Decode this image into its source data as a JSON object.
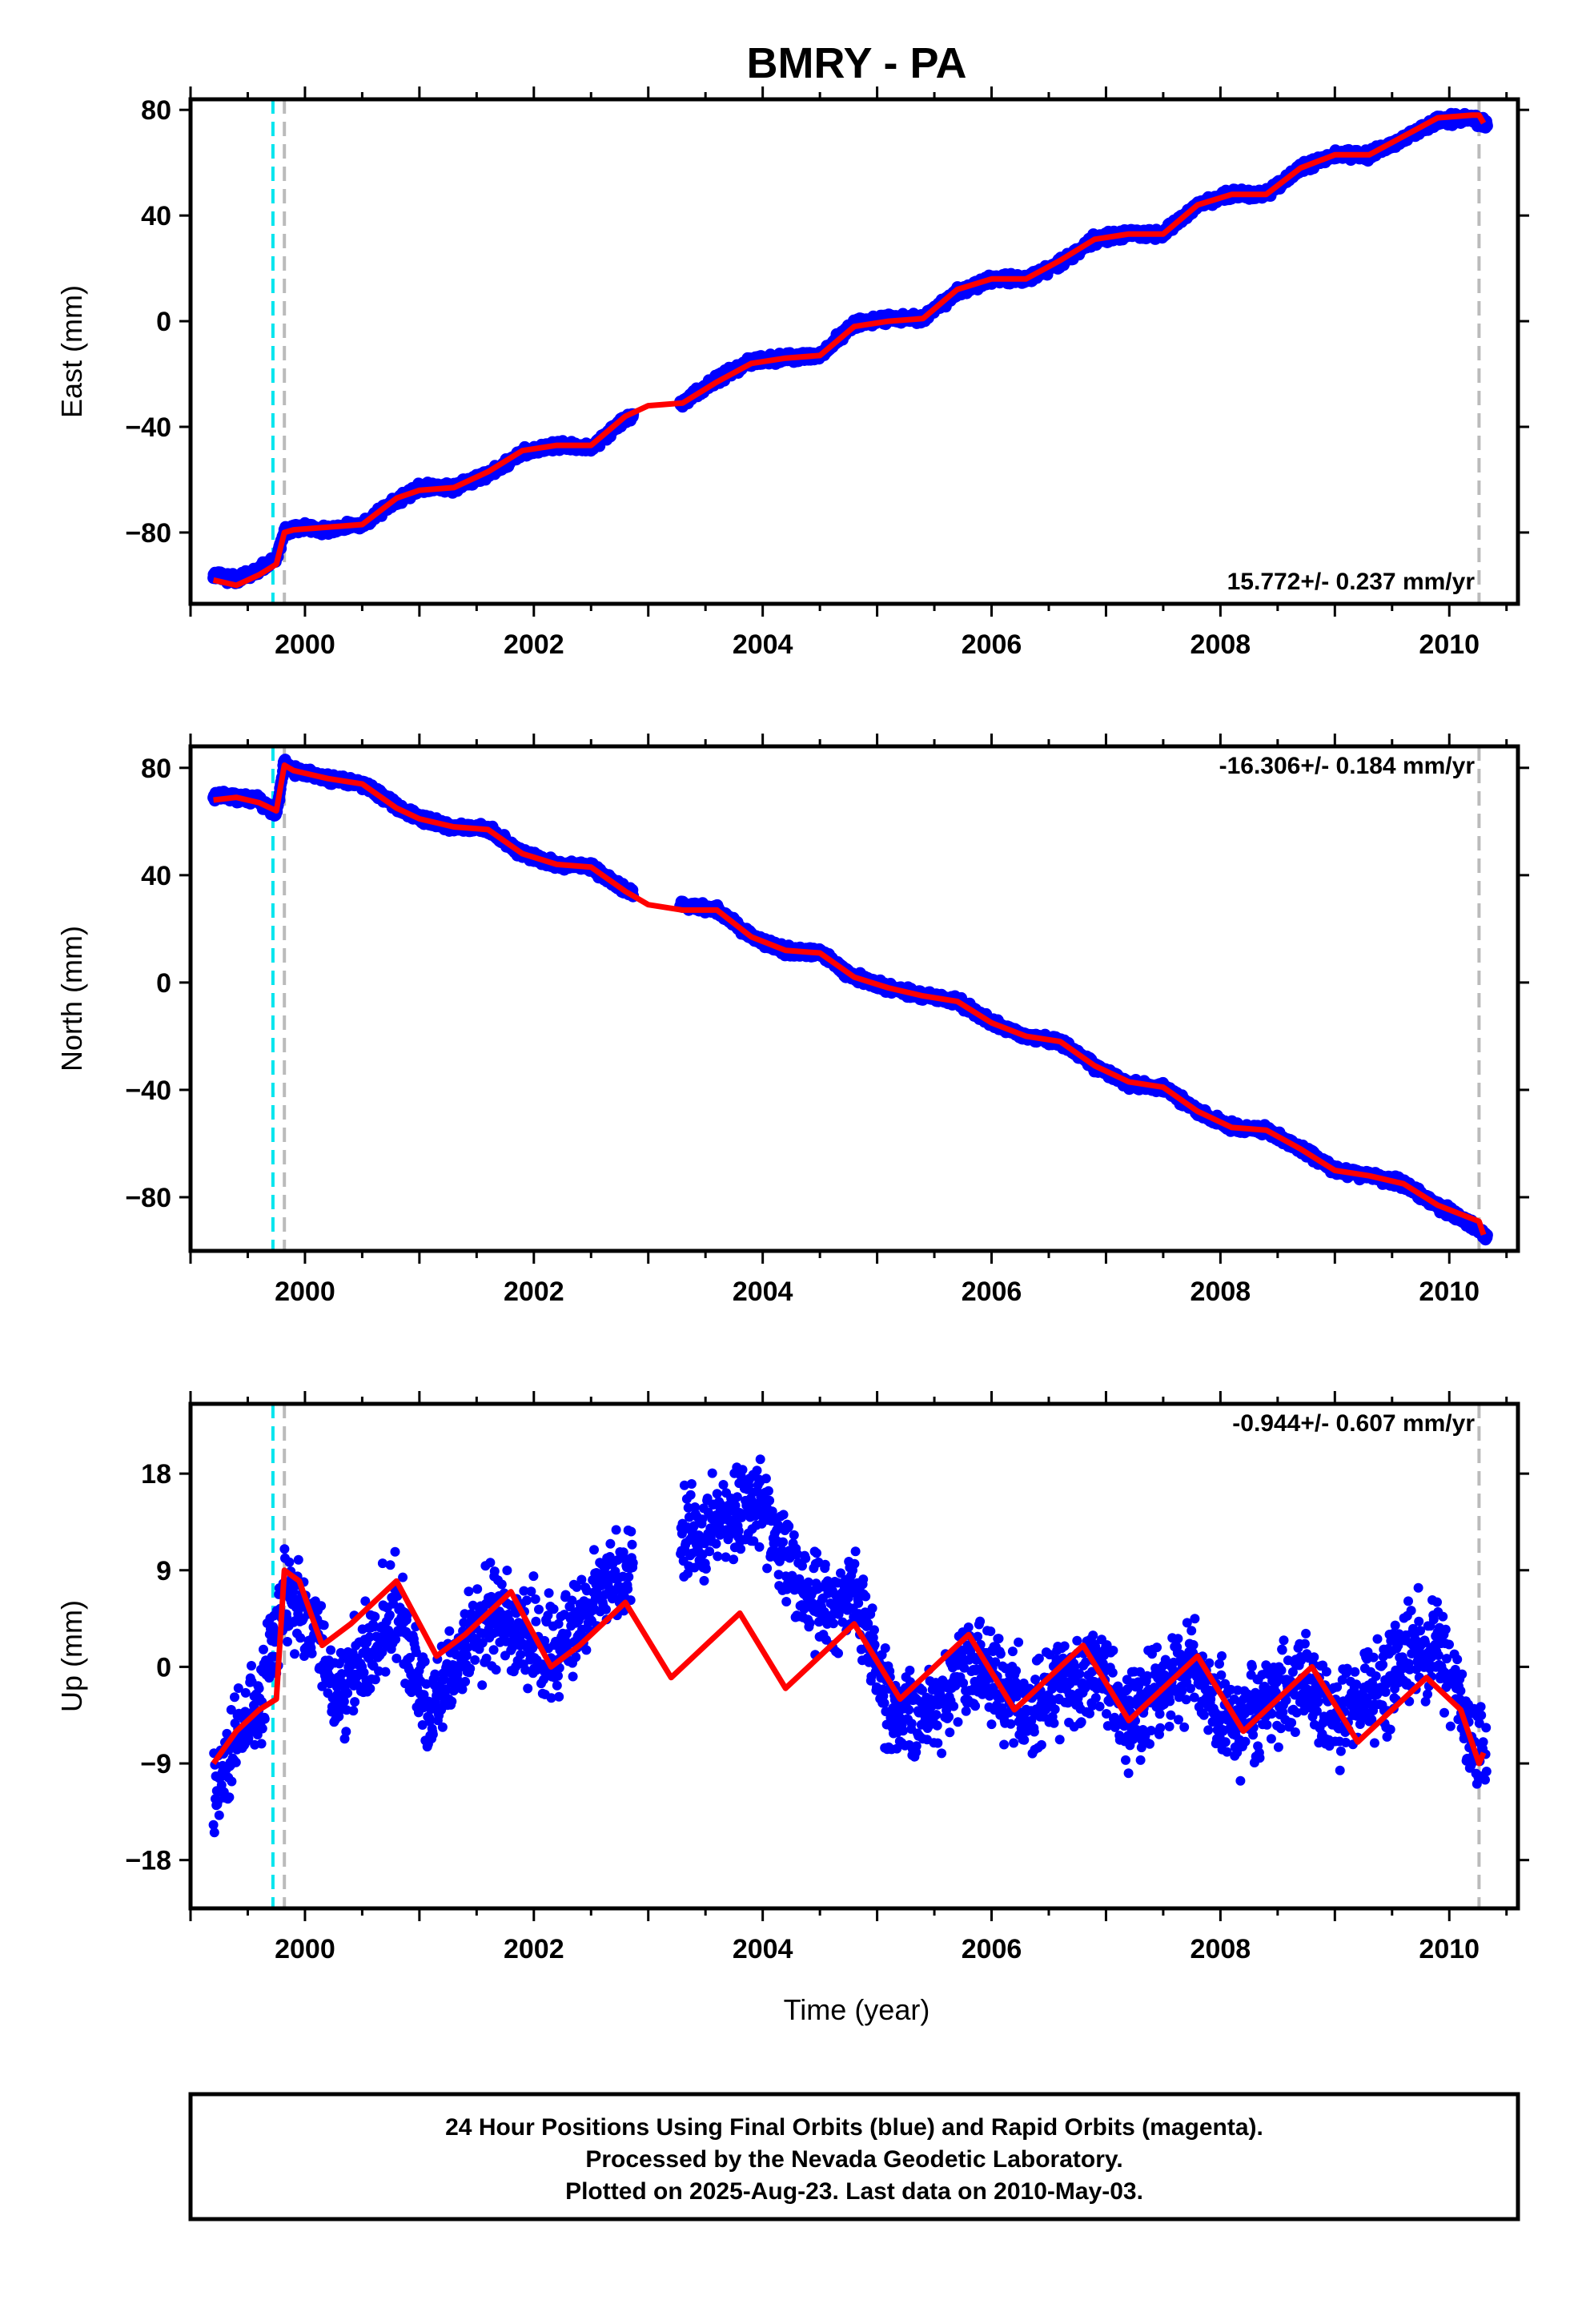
{
  "chart_data": [
    {
      "type": "scatter",
      "title": "BMRY - PA",
      "ylabel": "East (mm)",
      "xlabel": "",
      "xlim": [
        1999.0,
        2010.6
      ],
      "ylim": [
        -107,
        84
      ],
      "yticks": [
        -80,
        -40,
        0,
        40,
        80
      ],
      "xticks": [
        2000,
        2002,
        2004,
        2006,
        2008,
        2010
      ],
      "rate_text": "15.772+/- 0.237 mm/yr",
      "rate_position": "bottom-right",
      "event_lines": [
        {
          "x": 1999.72,
          "color": "#00e5ee"
        },
        {
          "x": 1999.82,
          "color": "#bbbbbb"
        },
        {
          "x": 2010.26,
          "color": "#bbbbbb"
        }
      ],
      "series": [
        {
          "color": "#0000ff",
          "x": [
            1999.2,
            1999.4,
            1999.6,
            1999.75,
            1999.82,
            1999.9,
            2000.2,
            2000.5,
            2000.8,
            2001.0,
            2001.3,
            2001.6,
            2001.9,
            2002.2,
            2002.5,
            2002.8,
            2003.3,
            2003.6,
            2003.9,
            2004.2,
            2004.5,
            2004.8,
            2005.1,
            2005.4,
            2005.7,
            2006.0,
            2006.3,
            2006.6,
            2006.9,
            2007.2,
            2007.5,
            2007.8,
            2008.1,
            2008.4,
            2008.7,
            2009.0,
            2009.3,
            2009.6,
            2009.9,
            2010.2,
            2010.33
          ],
          "y": [
            -96,
            -98,
            -94,
            -90,
            -80,
            -78,
            -79,
            -77,
            -68,
            -63,
            -63,
            -58,
            -50,
            -47,
            -48,
            -37,
            -31,
            -22,
            -15,
            -14,
            -13,
            -1,
            1,
            1,
            11,
            16,
            16,
            22,
            31,
            33,
            33,
            44,
            48,
            48,
            58,
            63,
            63,
            69,
            76,
            77,
            74
          ]
        },
        {
          "color": "#ff0000",
          "x": [
            1999.2,
            1999.4,
            1999.6,
            1999.75,
            1999.82,
            1999.9,
            2000.2,
            2000.5,
            2000.8,
            2001.0,
            2001.3,
            2001.6,
            2001.9,
            2002.2,
            2002.5,
            2002.8,
            2003.0,
            2003.3,
            2003.6,
            2003.9,
            2004.2,
            2004.5,
            2004.8,
            2005.1,
            2005.4,
            2005.7,
            2006.0,
            2006.3,
            2006.6,
            2006.9,
            2007.2,
            2007.5,
            2007.8,
            2008.1,
            2008.4,
            2008.7,
            2009.0,
            2009.3,
            2009.6,
            2009.9,
            2010.2,
            2010.26,
            2010.3
          ],
          "y": [
            -98,
            -100,
            -96,
            -92,
            -80,
            -79,
            -78,
            -77,
            -67,
            -64,
            -63,
            -57,
            -49,
            -47,
            -47,
            -36,
            -32,
            -31,
            -23,
            -16,
            -14,
            -13,
            -2,
            0,
            1,
            12,
            16,
            16,
            23,
            31,
            33,
            33,
            44,
            48,
            48,
            58,
            63,
            63,
            70,
            77,
            78,
            78,
            75
          ]
        }
      ]
    },
    {
      "type": "scatter",
      "ylabel": "North (mm)",
      "xlabel": "",
      "xlim": [
        1999.0,
        2010.6
      ],
      "ylim": [
        -100,
        88
      ],
      "yticks": [
        -80,
        -40,
        0,
        40,
        80
      ],
      "xticks": [
        2000,
        2002,
        2004,
        2006,
        2008,
        2010
      ],
      "rate_text": "-16.306+/- 0.184 mm/yr",
      "rate_position": "top-right",
      "event_lines": [
        {
          "x": 1999.72,
          "color": "#00e5ee"
        },
        {
          "x": 1999.82,
          "color": "#bbbbbb"
        },
        {
          "x": 2010.26,
          "color": "#bbbbbb"
        }
      ],
      "series": [
        {
          "color": "#0000ff",
          "x": [
            1999.2,
            1999.4,
            1999.6,
            1999.75,
            1999.82,
            1999.9,
            2000.2,
            2000.5,
            2000.8,
            2001.0,
            2001.3,
            2001.6,
            2001.9,
            2002.2,
            2002.5,
            2002.8,
            2003.3,
            2003.6,
            2003.9,
            2004.2,
            2004.5,
            2004.8,
            2005.1,
            2005.4,
            2005.7,
            2006.0,
            2006.3,
            2006.6,
            2006.9,
            2007.2,
            2007.5,
            2007.8,
            2008.1,
            2008.4,
            2008.7,
            2009.0,
            2009.3,
            2009.6,
            2009.9,
            2010.2,
            2010.33
          ],
          "y": [
            70,
            69,
            68,
            63,
            82,
            79,
            76,
            74,
            66,
            61,
            58,
            57,
            48,
            44,
            43,
            34,
            29,
            27,
            17,
            12,
            11,
            2,
            -2,
            -5,
            -7,
            -15,
            -20,
            -22,
            -31,
            -38,
            -39,
            -48,
            -54,
            -55,
            -62,
            -70,
            -72,
            -75,
            -83,
            -90,
            -95
          ]
        },
        {
          "color": "#ff0000",
          "x": [
            1999.2,
            1999.4,
            1999.6,
            1999.75,
            1999.82,
            1999.9,
            2000.2,
            2000.5,
            2000.8,
            2001.0,
            2001.3,
            2001.6,
            2001.9,
            2002.2,
            2002.5,
            2002.8,
            2003.0,
            2003.3,
            2003.6,
            2003.9,
            2004.2,
            2004.5,
            2004.8,
            2005.1,
            2005.4,
            2005.7,
            2006.0,
            2006.3,
            2006.6,
            2006.9,
            2007.2,
            2007.5,
            2007.8,
            2008.1,
            2008.4,
            2008.7,
            2009.0,
            2009.3,
            2009.6,
            2009.9,
            2010.2,
            2010.26,
            2010.3
          ],
          "y": [
            68,
            69,
            67,
            64,
            81,
            79,
            76,
            74,
            65,
            61,
            58,
            57,
            48,
            44,
            43,
            34,
            29,
            27,
            27,
            17,
            12,
            11,
            2,
            -2,
            -5,
            -7,
            -15,
            -20,
            -22,
            -31,
            -37,
            -39,
            -48,
            -54,
            -55,
            -62,
            -70,
            -72,
            -75,
            -83,
            -88,
            -89,
            -94
          ]
        }
      ]
    },
    {
      "type": "scatter",
      "ylabel": "Up (mm)",
      "xlabel": "Time (year)",
      "xlim": [
        1999.0,
        2010.6
      ],
      "ylim": [
        -22.5,
        24.5
      ],
      "yticks": [
        -18,
        -9,
        0,
        9,
        18
      ],
      "xticks": [
        2000,
        2002,
        2004,
        2006,
        2008,
        2010
      ],
      "rate_text": "-0.944+/- 0.607 mm/yr",
      "rate_position": "top-right",
      "event_lines": [
        {
          "x": 1999.72,
          "color": "#00e5ee"
        },
        {
          "x": 1999.82,
          "color": "#bbbbbb"
        },
        {
          "x": 2010.26,
          "color": "#bbbbbb"
        }
      ],
      "series": [
        {
          "color": "#0000ff",
          "x": [
            1999.2,
            1999.4,
            1999.6,
            1999.8,
            2000.0,
            2000.3,
            2000.6,
            2000.8,
            2001.1,
            2001.4,
            2001.7,
            2001.9,
            2002.2,
            2002.5,
            2002.8,
            2003.4,
            2003.6,
            2003.9,
            2004.2,
            2004.5,
            2004.8,
            2005.1,
            2005.4,
            2005.7,
            2006.0,
            2006.3,
            2006.6,
            2006.9,
            2007.2,
            2007.5,
            2007.8,
            2008.1,
            2008.4,
            2008.7,
            2009.0,
            2009.3,
            2009.6,
            2009.9,
            2010.2,
            2010.33
          ],
          "y": [
            -12,
            -7,
            -4,
            6,
            5,
            -3,
            3,
            6,
            -5,
            2,
            5,
            4,
            1,
            6,
            9,
            12,
            13,
            16,
            10,
            6,
            7,
            -4,
            -5,
            -1,
            0,
            -4,
            -2,
            0,
            -5,
            -2,
            0,
            -6,
            -3,
            -1,
            -5,
            -3,
            1,
            2,
            -7,
            -10
          ]
        },
        {
          "color": "#ff0000",
          "x": [
            1999.2,
            1999.4,
            1999.6,
            1999.75,
            1999.82,
            1999.95,
            2000.15,
            2000.4,
            2000.8,
            2001.15,
            2001.4,
            2001.8,
            2002.15,
            2002.4,
            2002.8,
            2003.2,
            2003.4,
            2003.8,
            2004.2,
            2004.4,
            2004.8,
            2005.2,
            2005.4,
            2005.8,
            2006.2,
            2006.4,
            2006.8,
            2007.2,
            2007.4,
            2007.8,
            2008.2,
            2008.4,
            2008.8,
            2009.2,
            2009.4,
            2009.8,
            2010.1,
            2010.26,
            2010.3
          ],
          "y": [
            -9,
            -6,
            -4,
            -3,
            9,
            8,
            2,
            4,
            8,
            1,
            3,
            7,
            0,
            2,
            6,
            -1,
            1,
            5,
            -2,
            0,
            4,
            -3,
            -1,
            3,
            -4,
            -2,
            2,
            -5,
            -3,
            1,
            -6,
            -4,
            0,
            -7,
            -5,
            -1,
            -4,
            -9,
            -8
          ]
        }
      ]
    }
  ],
  "footer": {
    "line1": "24 Hour Positions Using Final Orbits (blue) and Rapid Orbits (magenta).",
    "line2": "Processed by the Nevada Geodetic Laboratory.",
    "line3": "Plotted on 2025-Aug-23. Last data on 2010-May-03."
  }
}
